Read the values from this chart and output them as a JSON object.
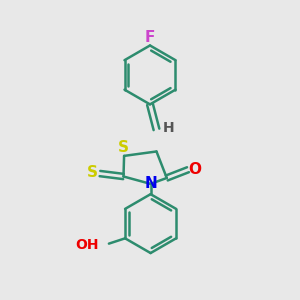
{
  "bg_color": "#e8e8e8",
  "bond_color": "#2d8c6e",
  "bond_width": 1.8,
  "atom_colors": {
    "F": "#cc44cc",
    "S": "#cccc00",
    "N": "#0000ee",
    "O": "#ee0000",
    "H": "#555555",
    "C": "#2d8c6e"
  }
}
